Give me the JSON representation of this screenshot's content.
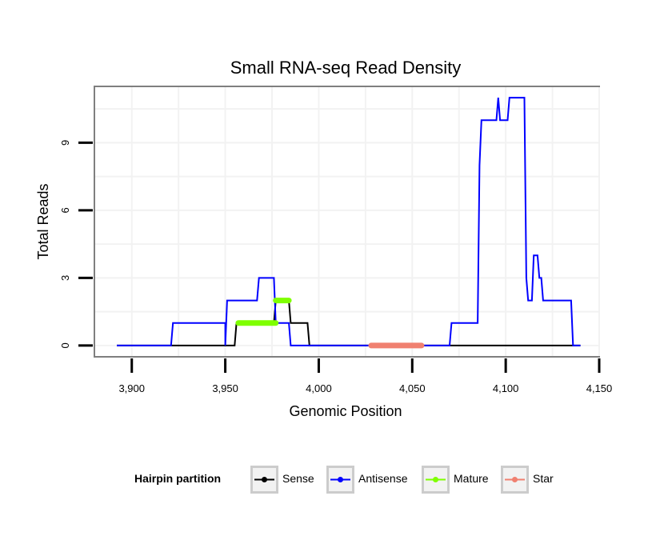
{
  "chart_data": {
    "type": "line",
    "title": "Small RNA-seq Read Density",
    "xlabel": "Genomic Position",
    "ylabel": "Total Reads",
    "xlim": [
      3880,
      4150
    ],
    "ylim": [
      -0.5,
      11.5
    ],
    "x_ticks": [
      3900,
      3950,
      4000,
      4050,
      4100,
      4150
    ],
    "x_tick_labels": [
      "3,900",
      "3,950",
      "4,000",
      "4,050",
      "4,100",
      "4,150"
    ],
    "y_ticks": [
      0,
      3,
      6,
      9
    ],
    "y_tick_labels": [
      "0",
      "3",
      "6",
      "9"
    ],
    "grid": true,
    "legend": {
      "title": "Hairpin partition",
      "position": "bottom",
      "entries": [
        "Sense",
        "Antisense",
        "Mature",
        "Star"
      ]
    },
    "series": [
      {
        "name": "Sense",
        "color": "#000000",
        "points": [
          [
            3892,
            0
          ],
          [
            3955,
            0
          ],
          [
            3956,
            1
          ],
          [
            3976,
            1
          ],
          [
            3977,
            2
          ],
          [
            3984,
            2
          ],
          [
            3985,
            1
          ],
          [
            3987,
            1
          ],
          [
            3988,
            1
          ],
          [
            3994,
            1
          ],
          [
            3995,
            0
          ],
          [
            4140,
            0
          ]
        ]
      },
      {
        "name": "Antisense",
        "color": "#0000ff",
        "points": [
          [
            3892,
            0
          ],
          [
            3921,
            0
          ],
          [
            3922,
            1
          ],
          [
            3950,
            1
          ],
          [
            3950,
            0
          ],
          [
            3951,
            2
          ],
          [
            3967,
            2
          ],
          [
            3968,
            3
          ],
          [
            3976,
            3
          ],
          [
            3977,
            1
          ],
          [
            3978,
            1
          ],
          [
            3979,
            1
          ],
          [
            3984,
            1
          ],
          [
            3985,
            0
          ],
          [
            4070,
            0
          ],
          [
            4071,
            1
          ],
          [
            4085,
            1
          ],
          [
            4086,
            8
          ],
          [
            4087,
            10
          ],
          [
            4095,
            10
          ],
          [
            4096,
            11
          ],
          [
            4097,
            10
          ],
          [
            4101,
            10
          ],
          [
            4102,
            11
          ],
          [
            4110,
            11
          ],
          [
            4111,
            3
          ],
          [
            4112,
            2
          ],
          [
            4114,
            2
          ],
          [
            4115,
            4
          ],
          [
            4117,
            4
          ],
          [
            4118,
            3
          ],
          [
            4119,
            3
          ],
          [
            4120,
            2
          ],
          [
            4135,
            2
          ],
          [
            4136,
            0
          ],
          [
            4140,
            0
          ]
        ]
      },
      {
        "name": "Mature",
        "color": "#7fff00",
        "segments": [
          [
            [
              3957,
              1
            ],
            [
              3977,
              1
            ]
          ],
          [
            [
              3977,
              2
            ],
            [
              3984,
              2
            ]
          ]
        ]
      },
      {
        "name": "Star",
        "color": "#f08070",
        "segments": [
          [
            [
              4028,
              0
            ],
            [
              4055,
              0
            ]
          ]
        ]
      }
    ]
  }
}
